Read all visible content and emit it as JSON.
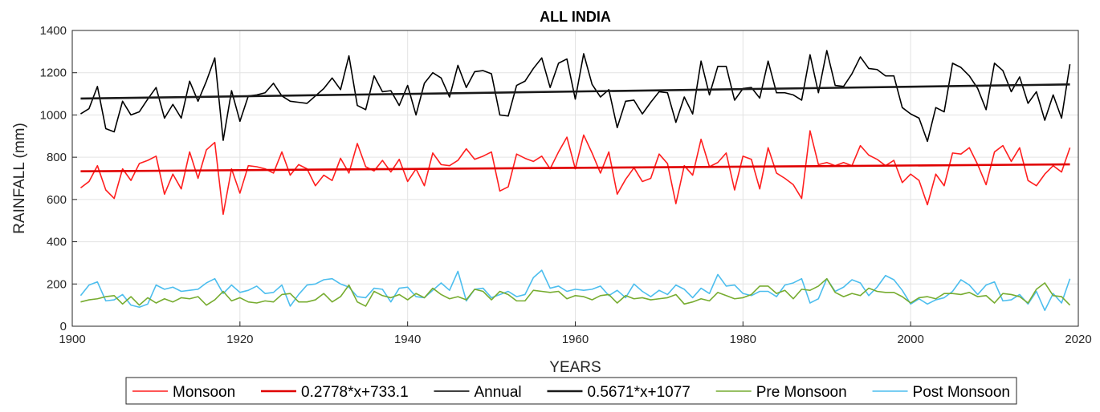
{
  "chart_data": {
    "type": "line",
    "title": "ALL INDIA",
    "xlabel": "YEARS",
    "ylabel": "RAINFALL (mm)",
    "xlim": [
      1900,
      2020
    ],
    "ylim": [
      0,
      1400
    ],
    "xticks": [
      1900,
      1920,
      1940,
      1960,
      1980,
      2000,
      2020
    ],
    "yticks": [
      0,
      200,
      400,
      600,
      800,
      1000,
      1200,
      1400
    ],
    "grid": true,
    "legend_position": "bottom",
    "x_start_year": 1901,
    "series": [
      {
        "name": "Monsoon",
        "color": "#ff1f1f",
        "kind": "data",
        "values": [
          655,
          685,
          760,
          645,
          605,
          745,
          690,
          770,
          785,
          805,
          625,
          720,
          650,
          825,
          700,
          835,
          870,
          530,
          745,
          630,
          760,
          755,
          745,
          725,
          825,
          715,
          765,
          745,
          665,
          715,
          690,
          795,
          725,
          865,
          755,
          735,
          785,
          730,
          790,
          685,
          745,
          665,
          820,
          765,
          760,
          785,
          840,
          790,
          805,
          825,
          640,
          660,
          815,
          795,
          780,
          805,
          745,
          825,
          895,
          745,
          905,
          820,
          725,
          825,
          625,
          695,
          750,
          685,
          700,
          815,
          770,
          580,
          760,
          715,
          885,
          755,
          775,
          820,
          645,
          805,
          790,
          650,
          845,
          725,
          700,
          670,
          605,
          925,
          765,
          775,
          760,
          775,
          760,
          855,
          810,
          790,
          760,
          785,
          680,
          720,
          690,
          575,
          720,
          665,
          820,
          815,
          845,
          765,
          670,
          825,
          855,
          780,
          845,
          690,
          665,
          720,
          760,
          730,
          845
        ]
      },
      {
        "name": "0.2778*x+733.1",
        "color": "#e00000",
        "kind": "trend",
        "slope": 0.2778,
        "intercept": 733.1
      },
      {
        "name": "Annual",
        "color": "#000000",
        "kind": "data",
        "values": [
          1005,
          1030,
          1135,
          935,
          920,
          1065,
          1000,
          1015,
          1075,
          1130,
          985,
          1050,
          985,
          1160,
          1065,
          1160,
          1270,
          880,
          1115,
          970,
          1090,
          1095,
          1105,
          1150,
          1090,
          1065,
          1060,
          1055,
          1090,
          1125,
          1175,
          1120,
          1280,
          1045,
          1025,
          1185,
          1110,
          1115,
          1045,
          1140,
          1000,
          1150,
          1200,
          1175,
          1085,
          1235,
          1130,
          1205,
          1210,
          1195,
          1000,
          995,
          1140,
          1160,
          1220,
          1270,
          1130,
          1245,
          1265,
          1075,
          1290,
          1145,
          1085,
          1120,
          940,
          1065,
          1070,
          1005,
          1060,
          1110,
          1105,
          965,
          1085,
          1005,
          1255,
          1095,
          1230,
          1230,
          1070,
          1125,
          1130,
          1080,
          1255,
          1105,
          1105,
          1095,
          1070,
          1285,
          1105,
          1305,
          1140,
          1135,
          1195,
          1275,
          1220,
          1215,
          1185,
          1185,
          1035,
          1005,
          985,
          875,
          1035,
          1015,
          1245,
          1225,
          1185,
          1125,
          1025,
          1245,
          1210,
          1110,
          1180,
          1055,
          1110,
          975,
          1095,
          985,
          1240
        ]
      },
      {
        "name": "0.5671*x+1077",
        "color": "#1a1a1a",
        "kind": "trend",
        "slope": 0.5671,
        "intercept": 1077
      },
      {
        "name": "Pre Monsoon",
        "color": "#77ac30",
        "kind": "data",
        "values": [
          115,
          125,
          130,
          140,
          145,
          105,
          140,
          100,
          135,
          110,
          130,
          115,
          135,
          130,
          140,
          100,
          125,
          165,
          120,
          135,
          115,
          110,
          120,
          115,
          150,
          155,
          115,
          115,
          125,
          155,
          115,
          140,
          195,
          115,
          95,
          165,
          145,
          135,
          150,
          125,
          155,
          135,
          180,
          150,
          130,
          140,
          125,
          175,
          165,
          125,
          165,
          150,
          120,
          120,
          170,
          165,
          160,
          165,
          130,
          145,
          140,
          125,
          145,
          150,
          110,
          145,
          130,
          135,
          125,
          130,
          135,
          150,
          105,
          115,
          130,
          120,
          160,
          145,
          130,
          135,
          150,
          190,
          190,
          155,
          170,
          130,
          175,
          170,
          190,
          225,
          160,
          140,
          155,
          145,
          180,
          165,
          160,
          160,
          140,
          110,
          135,
          140,
          130,
          155,
          155,
          150,
          160,
          140,
          145,
          110,
          155,
          150,
          140,
          110,
          175,
          205,
          145,
          140,
          100
        ]
      },
      {
        "name": "Post Monsoon",
        "color": "#4dbeee",
        "kind": "data",
        "values": [
          145,
          195,
          210,
          120,
          125,
          150,
          100,
          90,
          105,
          195,
          175,
          185,
          165,
          170,
          175,
          205,
          225,
          155,
          195,
          160,
          170,
          190,
          155,
          160,
          195,
          95,
          150,
          195,
          200,
          220,
          225,
          200,
          185,
          140,
          135,
          180,
          175,
          115,
          180,
          185,
          140,
          135,
          170,
          205,
          170,
          260,
          120,
          175,
          180,
          135,
          150,
          165,
          140,
          150,
          230,
          265,
          180,
          190,
          165,
          175,
          170,
          175,
          190,
          145,
          170,
          135,
          200,
          165,
          140,
          170,
          150,
          195,
          175,
          135,
          180,
          155,
          245,
          190,
          195,
          155,
          145,
          165,
          165,
          140,
          195,
          205,
          225,
          110,
          130,
          225,
          165,
          185,
          220,
          205,
          145,
          185,
          240,
          220,
          170,
          105,
          130,
          105,
          125,
          135,
          165,
          220,
          195,
          150,
          195,
          210,
          120,
          125,
          150,
          105,
          165,
          75,
          155,
          110,
          225
        ]
      }
    ]
  }
}
